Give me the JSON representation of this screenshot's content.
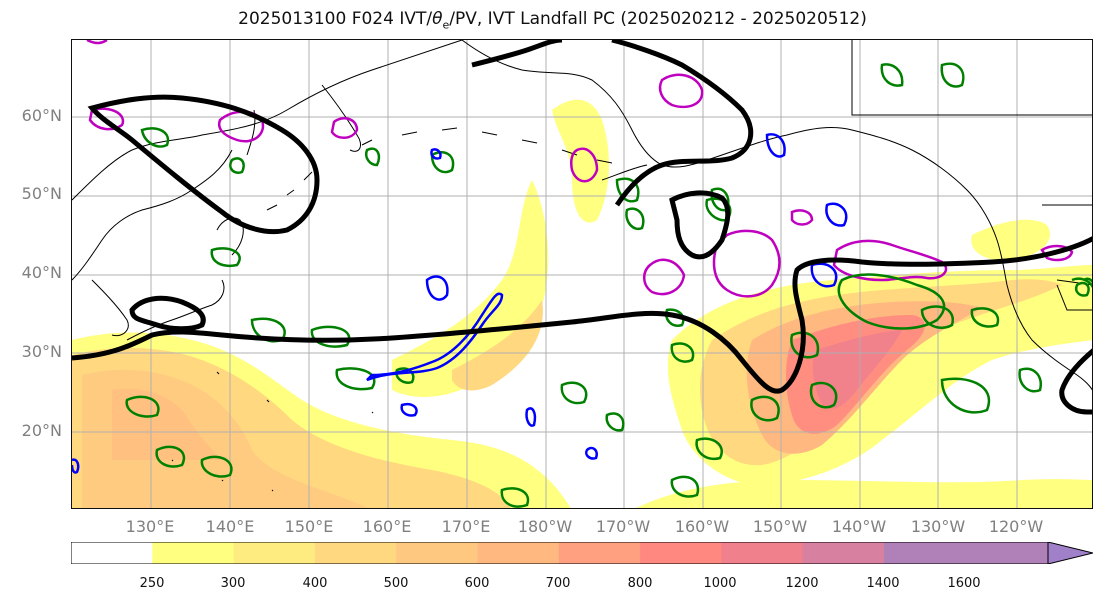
{
  "title": "2025013100 F024 IVT/θe/PV, IVT Landfall PC (2025020212 - 2025020512)",
  "title_parts": {
    "prefix": "2025013100 F024 IVT/",
    "theta": "θ",
    "sub": "e",
    "suffix": "/PV, IVT Landfall PC (2025020212 - 2025020512)"
  },
  "map": {
    "lat_labels": [
      "60°N",
      "50°N",
      "40°N",
      "30°N",
      "20°N"
    ],
    "lon_labels": [
      "130°E",
      "140°E",
      "150°E",
      "160°E",
      "170°E",
      "180°W",
      "170°W",
      "160°W",
      "150°W",
      "140°W",
      "130°W",
      "120°W"
    ],
    "contour_colors": {
      "theta_e": "#000000",
      "pv": "#008000",
      "pv_alt": "#0000ff",
      "pv_high": "#bf00bf"
    }
  },
  "colorbar": {
    "ticks": [
      "250",
      "300",
      "400",
      "500",
      "600",
      "700",
      "800",
      "1000",
      "1200",
      "1400",
      "1600"
    ],
    "colors": [
      "#ffffff",
      "#ffff80",
      "#ffec80",
      "#ffd880",
      "#ffc880",
      "#ffb880",
      "#ffa080",
      "#ff8880",
      "#f0808c",
      "#d880a0",
      "#b080b8",
      "#a080c8"
    ]
  }
}
